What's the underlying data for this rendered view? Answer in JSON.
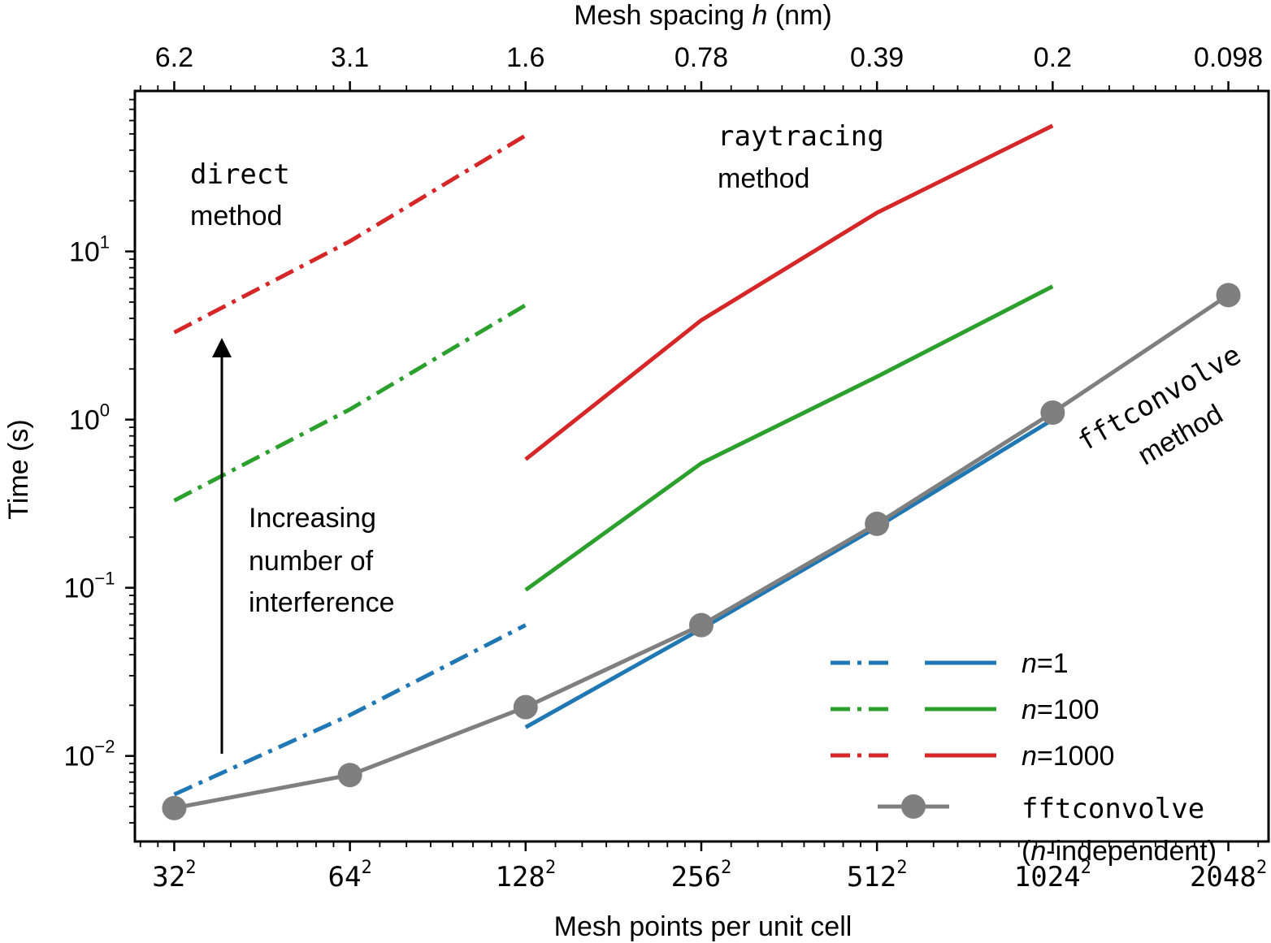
{
  "chart_data": {
    "type": "line",
    "xlabel": "Mesh points per unit cell",
    "x2label_parts": [
      "Mesh spacing ",
      "h",
      " (nm)"
    ],
    "ylabel": "Time (s)",
    "x_scale": "log2",
    "y_scale": "log10",
    "x_ticks": [
      {
        "value": 32,
        "base": "32",
        "exp": "2"
      },
      {
        "value": 64,
        "base": "64",
        "exp": "2"
      },
      {
        "value": 128,
        "base": "128",
        "exp": "2"
      },
      {
        "value": 256,
        "base": "256",
        "exp": "2"
      },
      {
        "value": 512,
        "base": "512",
        "exp": "2"
      },
      {
        "value": 1024,
        "base": "1024",
        "exp": "2"
      },
      {
        "value": 2048,
        "base": "2048",
        "exp": "2"
      }
    ],
    "x2_ticks": [
      {
        "value": 32,
        "label": "6.2"
      },
      {
        "value": 64,
        "label": "3.1"
      },
      {
        "value": 128,
        "label": "1.6"
      },
      {
        "value": 256,
        "label": "0.78"
      },
      {
        "value": 512,
        "label": "0.39"
      },
      {
        "value": 1024,
        "label": "0.2"
      },
      {
        "value": 2048,
        "label": "0.098"
      }
    ],
    "y_ticks": [
      {
        "value": 0.01,
        "base": "10",
        "exp": "−2"
      },
      {
        "value": 0.1,
        "base": "10",
        "exp": "−1"
      },
      {
        "value": 1,
        "base": "10",
        "exp": "0"
      },
      {
        "value": 10,
        "base": "10",
        "exp": "1"
      }
    ],
    "xlim": [
      27.4,
      2400
    ],
    "ylim": [
      0.0031,
      90
    ],
    "grid": false,
    "legend_position": "lower-right",
    "series": [
      {
        "name": "n=1",
        "method": "direct",
        "style": "dashdot",
        "color": "#1f77b4",
        "x": [
          32,
          64,
          128
        ],
        "y": [
          0.0059,
          0.0175,
          0.06
        ]
      },
      {
        "name": "n=100",
        "method": "direct",
        "style": "dashdot",
        "color": "#2ca02c",
        "x": [
          32,
          64,
          128
        ],
        "y": [
          0.33,
          1.15,
          4.8
        ]
      },
      {
        "name": "n=1000",
        "method": "direct",
        "style": "dashdot",
        "color": "#d62728",
        "x": [
          32,
          64,
          128
        ],
        "y": [
          3.3,
          11.5,
          49
        ]
      },
      {
        "name": "n=1",
        "method": "raytracing",
        "style": "solid",
        "color": "#1f77b4",
        "x": [
          128,
          256,
          512,
          1024
        ],
        "y": [
          0.0148,
          0.057,
          0.23,
          1.0
        ]
      },
      {
        "name": "n=100",
        "method": "raytracing",
        "style": "solid",
        "color": "#2ca02c",
        "x": [
          128,
          256,
          512,
          1024
        ],
        "y": [
          0.097,
          0.55,
          1.8,
          6.2
        ]
      },
      {
        "name": "n=1000",
        "method": "raytracing",
        "style": "solid",
        "color": "#d62728",
        "x": [
          128,
          256,
          512,
          1024
        ],
        "y": [
          0.58,
          3.9,
          17,
          56
        ]
      },
      {
        "name": "fftconvolve",
        "method": "fftconvolve",
        "style": "solid-markers",
        "color": "#7f7f7f",
        "x": [
          32,
          64,
          128,
          256,
          512,
          1024,
          2048
        ],
        "y": [
          0.0049,
          0.0077,
          0.0195,
          0.06,
          0.24,
          1.1,
          5.5
        ]
      }
    ],
    "annotations": {
      "direct_code": "direct",
      "direct_word": "method",
      "raytracing_code": "raytracing",
      "raytracing_word": "method",
      "fft_code": "fftconvolve",
      "fft_word": "method",
      "increasing_lines": [
        "Increasing",
        "number of",
        "interference"
      ]
    },
    "legend": [
      {
        "prefix": "n",
        "suffix": "=1",
        "color": "#1f77b4"
      },
      {
        "prefix": "n",
        "suffix": "=100",
        "color": "#2ca02c"
      },
      {
        "prefix": "n",
        "suffix": "=1000",
        "color": "#d62728"
      }
    ],
    "legend_fft": {
      "code": "fftconvolve",
      "open": "(",
      "italic": "n",
      "rest": "-independent)",
      "color": "#7f7f7f"
    }
  }
}
